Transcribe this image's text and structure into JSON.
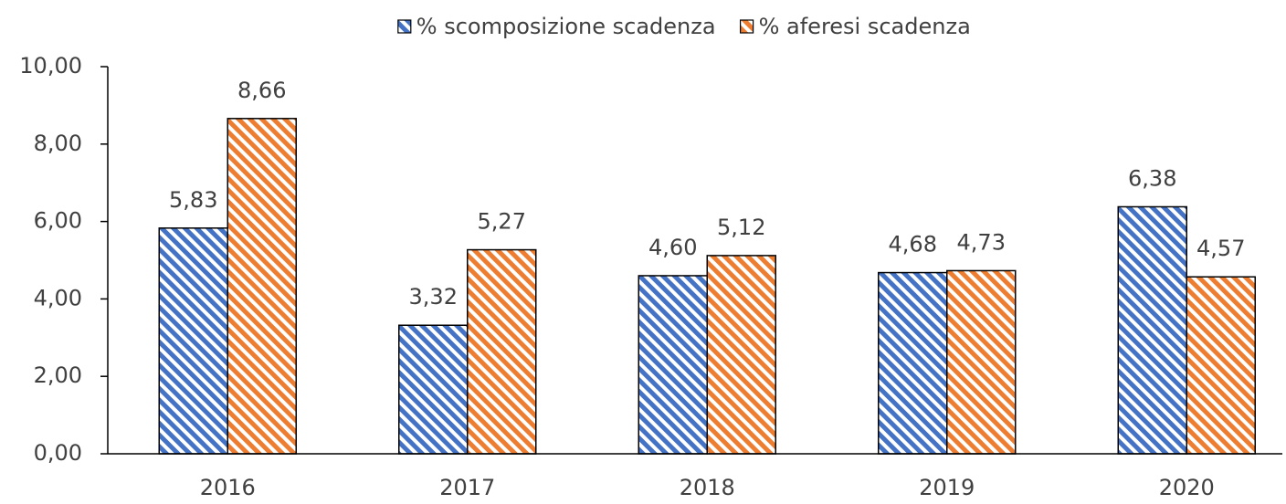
{
  "chart_data": {
    "type": "bar",
    "categories": [
      "2016",
      "2017",
      "2018",
      "2019",
      "2020"
    ],
    "series": [
      {
        "name": "% scomposizione scadenza",
        "color": "#4472c4",
        "values": [
          5.83,
          3.32,
          4.6,
          4.68,
          6.38
        ],
        "value_labels": [
          "5,83",
          "3,32",
          "4,60",
          "4,68",
          "6,38"
        ]
      },
      {
        "name": "% aferesi scadenza",
        "color": "#ed7d31",
        "values": [
          8.66,
          5.27,
          5.12,
          4.73,
          4.57
        ],
        "value_labels": [
          "8,66",
          "5,27",
          "5,12",
          "4,73",
          "4,57"
        ]
      }
    ],
    "ylim": [
      0,
      10
    ],
    "yticks": [
      {
        "value": 0,
        "label": "0,00"
      },
      {
        "value": 2,
        "label": "2,00"
      },
      {
        "value": 4,
        "label": "4,00"
      },
      {
        "value": 6,
        "label": "6,00"
      },
      {
        "value": 8,
        "label": "8,00"
      },
      {
        "value": 10,
        "label": "10,00"
      }
    ],
    "legend": "top",
    "grid": false
  }
}
